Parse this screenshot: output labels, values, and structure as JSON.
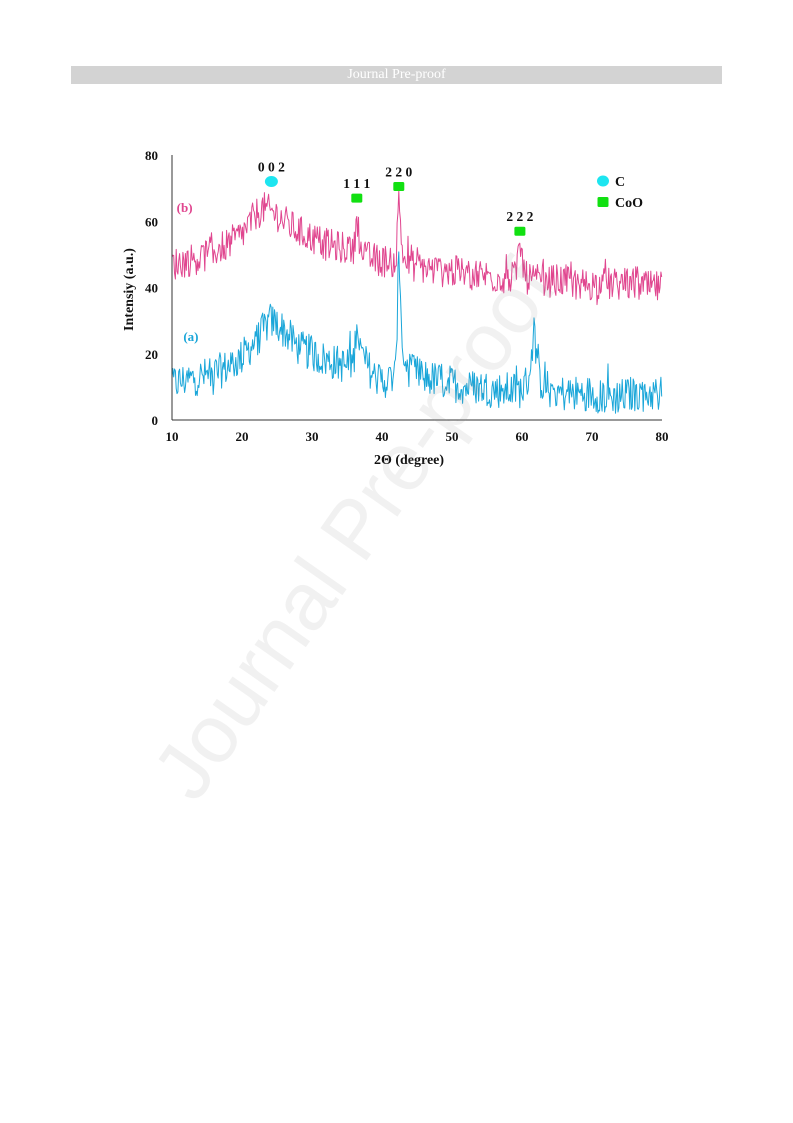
{
  "header": {
    "title": "Journal Pre-proof"
  },
  "watermark": "Journal Pre-proof",
  "chart_data": {
    "type": "line",
    "title": "",
    "xlabel": "2Θ (degree)",
    "ylabel": "Intensiy (a.u.)",
    "xlim": [
      10,
      80
    ],
    "ylim": [
      0,
      80
    ],
    "x_ticks": [
      10,
      20,
      30,
      40,
      50,
      60,
      70,
      80
    ],
    "y_ticks": [
      0,
      20,
      40,
      60,
      80
    ],
    "grid": false,
    "legend_position": "top-right",
    "legend": [
      {
        "label": "C",
        "marker": "circle",
        "color": "#1de5f0"
      },
      {
        "label": "CoO",
        "marker": "square",
        "color": "#11e011"
      }
    ],
    "series": [
      {
        "name": "(a)",
        "color": "#1aa6d9",
        "x": [
          10,
          12,
          14,
          16,
          18,
          20,
          22,
          23,
          24,
          25,
          26,
          28,
          30,
          32,
          34,
          35,
          36,
          36.4,
          37,
          38,
          39,
          40,
          41,
          42,
          42.4,
          43,
          44,
          46,
          48,
          50,
          52,
          54,
          56,
          58,
          60,
          61,
          61.7,
          62.5,
          64,
          66,
          68,
          70,
          72,
          74,
          76,
          78,
          80
        ],
        "values": [
          11,
          12,
          13,
          14,
          16,
          19,
          24,
          27,
          30,
          29,
          27,
          22,
          20,
          18,
          17,
          16,
          18,
          31,
          20,
          16,
          13,
          12,
          12,
          14,
          53,
          18,
          15,
          13,
          12,
          11,
          10,
          10,
          9,
          9,
          9,
          13,
          27,
          12,
          9,
          8,
          8,
          8,
          7,
          7,
          8,
          8,
          8
        ]
      },
      {
        "name": "(b)",
        "color": "#e0468f",
        "x": [
          10,
          12,
          14,
          16,
          18,
          20,
          21,
          22,
          23,
          24,
          25,
          26,
          28,
          30,
          32,
          34,
          35,
          36,
          36.4,
          37,
          38,
          40,
          42,
          42.4,
          43,
          44,
          46,
          48,
          50,
          52,
          54,
          56,
          58,
          59,
          59.7,
          60.5,
          62,
          64,
          66,
          68,
          70,
          72,
          74,
          76,
          78,
          80
        ],
        "values": [
          47,
          48,
          49,
          51,
          53,
          56,
          59,
          62,
          64,
          63,
          62,
          60,
          57,
          55,
          53,
          52,
          52,
          51,
          63,
          50,
          49,
          48,
          48,
          67,
          49,
          47,
          46,
          45,
          45,
          44,
          44,
          43,
          43,
          43,
          53,
          43,
          42,
          42,
          42,
          41,
          41,
          41,
          41,
          41,
          40,
          40
        ]
      }
    ],
    "annotations": [
      {
        "label": "0 0 2",
        "x": 24.2,
        "y": 72,
        "phase": "C"
      },
      {
        "label": "1 1 1",
        "x": 36.4,
        "y": 67,
        "phase": "CoO"
      },
      {
        "label": "2 2 0",
        "x": 42.4,
        "y": 70.5,
        "phase": "CoO"
      },
      {
        "label": "2 2 2",
        "x": 59.7,
        "y": 57,
        "phase": "CoO"
      }
    ],
    "series_labels": [
      {
        "label": "(b)",
        "x": 11.8,
        "y": 64
      },
      {
        "label": "(a)",
        "x": 12.7,
        "y": 25
      }
    ]
  }
}
